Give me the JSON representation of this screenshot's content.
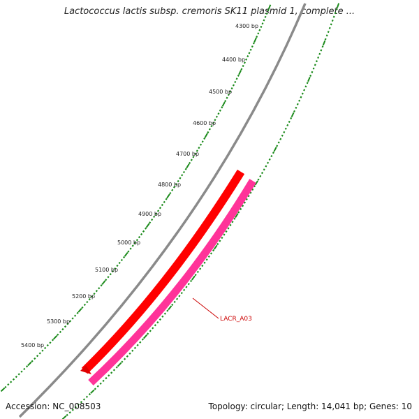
{
  "header": {
    "title": "Lactococcus lactis subsp. cremoris SK11 plasmid 1, complete ..."
  },
  "footer": {
    "accession": "Accession: NC_008503",
    "summary": "Topology: circular; Length: 14,041 bp; Genes: 10"
  },
  "map": {
    "unit": "bp",
    "tick_labels": [
      "4300 bp",
      "4400 bp",
      "4500 bp",
      "4600 bp",
      "4700 bp",
      "4800 bp",
      "4900 bp",
      "5000 bp",
      "5100 bp",
      "5200 bp",
      "5300 bp",
      "5400 bp"
    ],
    "features": [
      {
        "name": "",
        "strand": "forward",
        "color": "#ff0000"
      },
      {
        "name": "LACR_A03",
        "strand": "reverse",
        "color": "#ff3399"
      }
    ],
    "colors": {
      "backbone": "#888888",
      "ticks": "#1a8a1a",
      "label_line": "#cc0000"
    }
  }
}
